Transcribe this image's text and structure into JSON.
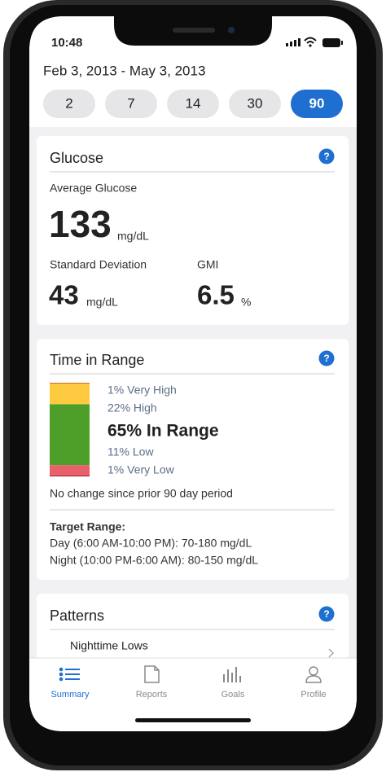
{
  "status_bar": {
    "time": "10:48"
  },
  "header": {
    "date_range": "Feb 3, 2013 - May 3, 2013",
    "periods": [
      "2",
      "7",
      "14",
      "30",
      "90"
    ],
    "selected_period": 4
  },
  "glucose_card": {
    "title": "Glucose",
    "help": "?",
    "average_label": "Average Glucose",
    "average_value": "133",
    "average_unit": "mg/dL",
    "sd_label": "Standard Deviation",
    "sd_value": "43",
    "sd_unit": "mg/dL",
    "gmi_label": "GMI",
    "gmi_value": "6.5",
    "gmi_unit": "%"
  },
  "time_in_range_card": {
    "title": "Time in Range",
    "help": "?",
    "chart_data": {
      "type": "stacked-bar",
      "series": [
        {
          "name": "Very High",
          "values": [
            1
          ],
          "value_labels": [
            "1% Very High"
          ],
          "color": "#c96a22"
        },
        {
          "name": "High",
          "values": [
            22
          ],
          "value_labels": [
            "22% High"
          ],
          "color": "#fdca40"
        },
        {
          "name": "In Range",
          "values": [
            65
          ],
          "value_labels": [
            "65% In Range"
          ],
          "color": "#4e9f2a"
        },
        {
          "name": "Low",
          "values": [
            11
          ],
          "value_labels": [
            "11% Low"
          ],
          "color": "#e9606a"
        },
        {
          "name": "Very Low",
          "values": [
            1
          ],
          "value_labels": [
            "1% Very Low"
          ],
          "color": "#a8142a"
        }
      ]
    },
    "change_note": "No change since prior 90 day period",
    "target_title": "Target Range:",
    "target_day": "Day (6:00 AM-10:00 PM): 70-180 mg/dL",
    "target_night": "Night (10:00 PM-6:00 AM): 80-150 mg/dL"
  },
  "patterns_card": {
    "title": "Patterns",
    "help": "?",
    "items": [
      "Nighttime Lows"
    ]
  },
  "tab_bar": {
    "tabs": [
      "Summary",
      "Reports",
      "Goals",
      "Profile"
    ]
  }
}
